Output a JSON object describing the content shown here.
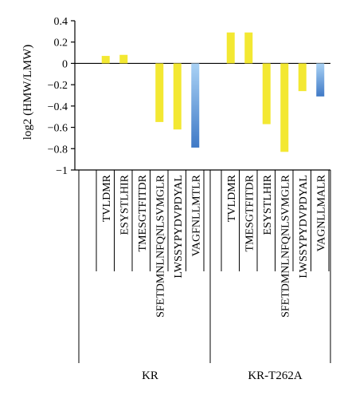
{
  "chart_data": {
    "type": "bar",
    "title": "",
    "ylabel": "log2 (HMW/LMW)",
    "xlabel": "",
    "ylim": [
      -1,
      0.4
    ],
    "yticks": [
      0.4,
      0.2,
      0,
      -0.2,
      -0.4,
      -0.6,
      -0.8,
      -1
    ],
    "ytick_labels": [
      "0.4",
      "0.2",
      "0",
      "−0.2",
      "−0.4",
      "−0.6",
      "−0.8",
      "−1"
    ],
    "groups": [
      {
        "name": "KR",
        "categories": [
          "TVLDMR",
          "ESYSTLHIR",
          "TMESGTFITDR",
          "SFETDMNLNFQNLSVMGLR",
          "LWSSYPYDVPDYAL",
          "VAGFNLLMTLR"
        ],
        "values": [
          0.07,
          0.08,
          0,
          -0.55,
          -0.62,
          -0.79
        ],
        "colors": [
          "#f3e832",
          "#f3e832",
          "#f3e832",
          "#f3e832",
          "#f3e832",
          "blue-gradient"
        ]
      },
      {
        "name": "KR-T262A",
        "categories": [
          "TVLDMR",
          "TMESGTFITDR",
          "ESYSTLHIR",
          "SFETDMNLNFQNLSVMGLR",
          "LWSSYPYDVPDYAL",
          "VAGNLLMALR"
        ],
        "values": [
          0.29,
          0.29,
          -0.57,
          -0.83,
          -0.26,
          -0.31
        ],
        "colors": [
          "#f3e832",
          "#f3e832",
          "#f3e832",
          "#f3e832",
          "#f3e832",
          "blue-gradient"
        ]
      }
    ],
    "grid": false,
    "legend": "none"
  },
  "colors": {
    "yellow": "#f3e832",
    "blue_top": "#a9d2f5",
    "blue_bottom": "#3f79c6"
  }
}
